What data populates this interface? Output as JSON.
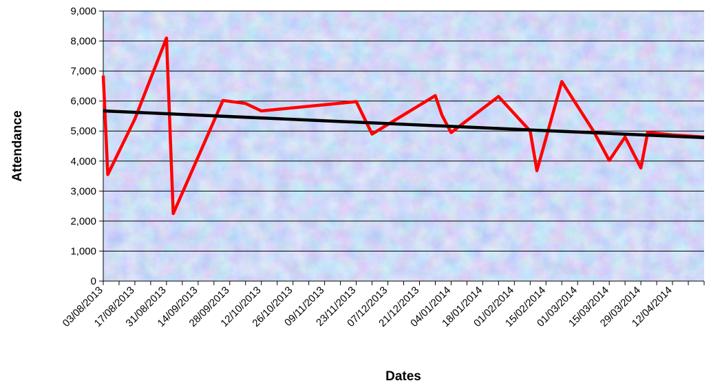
{
  "chart_data": {
    "type": "line",
    "title": "",
    "xlabel": "Dates",
    "ylabel": "Attendance",
    "ylim": [
      0,
      9000
    ],
    "yticks": [
      0,
      1000,
      2000,
      3000,
      4000,
      5000,
      6000,
      7000,
      8000,
      9000
    ],
    "ytick_labels": [
      "0",
      "1,000",
      "2,000",
      "3,000",
      "4,000",
      "5,000",
      "6,000",
      "7,000",
      "8,000",
      "9,000"
    ],
    "xlim": [
      "2013-08-03",
      "2014-04-26"
    ],
    "xtick_labels": [
      "03/08/2013",
      "17/08/2013",
      "31/08/2013",
      "14/09/2013",
      "28/09/2013",
      "12/10/2013",
      "26/10/2013",
      "09/11/2013",
      "23/11/2013",
      "07/12/2013",
      "21/12/2013",
      "04/01/2014",
      "18/01/2014",
      "01/02/2014",
      "15/02/2014",
      "01/03/2014",
      "15/03/2014",
      "29/03/2014",
      "12/04/2014"
    ],
    "grid": true,
    "legend": false,
    "plot_background": "blue-pink mottled texture",
    "series": [
      {
        "color": "#ff0000",
        "points": [
          {
            "x": "2013-08-03",
            "y": 6850
          },
          {
            "x": "2013-08-05",
            "y": 3550
          },
          {
            "x": "2013-08-17",
            "y": 5400
          },
          {
            "x": "2013-08-31",
            "y": 8100
          },
          {
            "x": "2013-09-03",
            "y": 2250
          },
          {
            "x": "2013-09-25",
            "y": 6020
          },
          {
            "x": "2013-10-05",
            "y": 5920
          },
          {
            "x": "2013-10-12",
            "y": 5670
          },
          {
            "x": "2013-11-23",
            "y": 5980
          },
          {
            "x": "2013-11-30",
            "y": 4900
          },
          {
            "x": "2013-12-28",
            "y": 6180
          },
          {
            "x": "2013-12-31",
            "y": 5520
          },
          {
            "x": "2014-01-04",
            "y": 4950
          },
          {
            "x": "2014-01-25",
            "y": 6150
          },
          {
            "x": "2014-02-08",
            "y": 5000
          },
          {
            "x": "2014-02-11",
            "y": 3680
          },
          {
            "x": "2014-02-22",
            "y": 6650
          },
          {
            "x": "2014-03-08",
            "y": 5000
          },
          {
            "x": "2014-03-15",
            "y": 4020
          },
          {
            "x": "2014-03-22",
            "y": 4800
          },
          {
            "x": "2014-03-29",
            "y": 3770
          },
          {
            "x": "2014-04-01",
            "y": 4950
          },
          {
            "x": "2014-04-12",
            "y": 4870
          },
          {
            "x": "2014-04-26",
            "y": 4800
          }
        ]
      },
      {
        "color": "#000000",
        "line_kind": "linear trendline",
        "points": [
          {
            "x": "2013-08-03",
            "y": 5670
          },
          {
            "x": "2014-04-26",
            "y": 4780
          }
        ]
      }
    ]
  }
}
